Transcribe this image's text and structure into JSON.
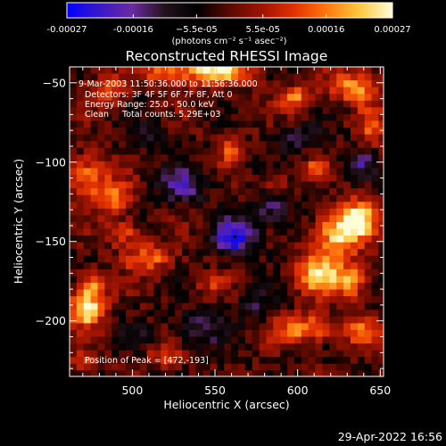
{
  "chart_data": {
    "type": "heatmap",
    "title": "Reconstructed RHESSI Image",
    "xlabel": "Heliocentric X (arcsec)",
    "ylabel": "Heliocentric Y (arcsec)",
    "xlim": [
      462,
      652
    ],
    "ylim": [
      -235,
      -40
    ],
    "x_ticks": [
      500,
      550,
      600,
      650
    ],
    "x_tick_labels": [
      "500",
      "550",
      "600",
      "650"
    ],
    "y_ticks": [
      -50,
      -100,
      -150,
      -200
    ],
    "y_tick_labels": [
      "−50",
      "−100",
      "−150",
      "−200"
    ],
    "colorbar": {
      "vmin": -0.00027,
      "vmax": 0.00027,
      "ticks": [
        -0.00027,
        -0.00016,
        -5.5e-05,
        5.5e-05,
        0.00016,
        0.00027
      ],
      "tick_labels": [
        "-0.00027",
        "-0.00016",
        "−5.5e-05",
        "5.5e-05",
        "0.00016",
        "0.00027"
      ],
      "unit_label": "(photons cm⁻² s⁻¹ asec⁻²)",
      "colors": [
        "#0000ff",
        "#3a18c8",
        "#6a2aa0",
        "#24121c",
        "#000000",
        "#5a0a00",
        "#a01400",
        "#e23200",
        "#ff7a10",
        "#ffc840",
        "#ffffd8"
      ]
    },
    "annotations": [
      "9-Mar-2003 11:50:36.000 to 11:56:36.000",
      "Detectors: 3F 4F 5F 6F 7F 8F, Att 0",
      "Energy Range: 25.0 - 50.0 keV",
      "Clean     Total counts: 5.29E+03"
    ],
    "peak_label": "Position of Peak = [472,-193]",
    "peak_position": [
      472,
      -193
    ],
    "min_marker": [
      562,
      -147
    ],
    "sources": [
      {
        "x": 550,
        "y": -42,
        "sx": 14,
        "sy": 7,
        "amp": 1.0
      },
      {
        "x": 520,
        "y": -44,
        "sx": 9,
        "sy": 5,
        "amp": 0.6
      },
      {
        "x": 486,
        "y": -54,
        "sx": 7,
        "sy": 7,
        "amp": 0.55
      },
      {
        "x": 600,
        "y": -60,
        "sx": 8,
        "sy": 6,
        "amp": 0.6
      },
      {
        "x": 634,
        "y": -52,
        "sx": 10,
        "sy": 7,
        "amp": 0.7
      },
      {
        "x": 645,
        "y": -78,
        "sx": 6,
        "sy": 10,
        "amp": 0.45
      },
      {
        "x": 473,
        "y": -110,
        "sx": 8,
        "sy": 10,
        "amp": 0.7
      },
      {
        "x": 490,
        "y": -122,
        "sx": 8,
        "sy": 8,
        "amp": 0.55
      },
      {
        "x": 560,
        "y": -92,
        "sx": 6,
        "sy": 6,
        "amp": 0.45
      },
      {
        "x": 586,
        "y": -112,
        "sx": 6,
        "sy": 5,
        "amp": 0.35
      },
      {
        "x": 610,
        "y": -104,
        "sx": 5,
        "sy": 4,
        "amp": 0.5
      },
      {
        "x": 625,
        "y": -145,
        "sx": 10,
        "sy": 10,
        "amp": 0.95
      },
      {
        "x": 638,
        "y": -135,
        "sx": 8,
        "sy": 8,
        "amp": 0.8
      },
      {
        "x": 612,
        "y": -170,
        "sx": 9,
        "sy": 9,
        "amp": 0.85
      },
      {
        "x": 632,
        "y": -175,
        "sx": 8,
        "sy": 8,
        "amp": 0.7
      },
      {
        "x": 605,
        "y": -205,
        "sx": 13,
        "sy": 6,
        "amp": 0.75
      },
      {
        "x": 640,
        "y": -208,
        "sx": 8,
        "sy": 6,
        "amp": 0.55
      },
      {
        "x": 472,
        "y": -193,
        "sx": 7,
        "sy": 7,
        "amp": 1.05
      },
      {
        "x": 476,
        "y": -178,
        "sx": 7,
        "sy": 6,
        "amp": 0.75
      },
      {
        "x": 510,
        "y": -160,
        "sx": 10,
        "sy": 6,
        "amp": 0.6
      },
      {
        "x": 495,
        "y": -145,
        "sx": 7,
        "sy": 6,
        "amp": 0.5
      },
      {
        "x": 520,
        "y": -222,
        "sx": 8,
        "sy": 5,
        "amp": 0.45
      },
      {
        "x": 470,
        "y": -226,
        "sx": 6,
        "sy": 5,
        "amp": 0.4
      },
      {
        "x": 548,
        "y": -178,
        "sx": 6,
        "sy": 5,
        "amp": 0.35
      },
      {
        "x": 530,
        "y": -115,
        "sx": 10,
        "sy": 8,
        "amp": -0.55
      },
      {
        "x": 562,
        "y": -147,
        "sx": 9,
        "sy": 8,
        "amp": -0.85
      },
      {
        "x": 585,
        "y": -130,
        "sx": 9,
        "sy": 8,
        "amp": -0.45
      },
      {
        "x": 540,
        "y": -205,
        "sx": 10,
        "sy": 8,
        "amp": -0.45
      },
      {
        "x": 575,
        "y": -190,
        "sx": 8,
        "sy": 7,
        "amp": -0.35
      },
      {
        "x": 640,
        "y": -100,
        "sx": 6,
        "sy": 6,
        "amp": -0.45
      },
      {
        "x": 600,
        "y": -85,
        "sx": 10,
        "sy": 6,
        "amp": -0.35
      },
      {
        "x": 510,
        "y": -85,
        "sx": 8,
        "sy": 6,
        "amp": -0.3
      },
      {
        "x": 500,
        "y": -210,
        "sx": 6,
        "sy": 6,
        "amp": -0.25
      }
    ]
  },
  "footer": {
    "date_label": "29-Apr-2022 16:56"
  }
}
